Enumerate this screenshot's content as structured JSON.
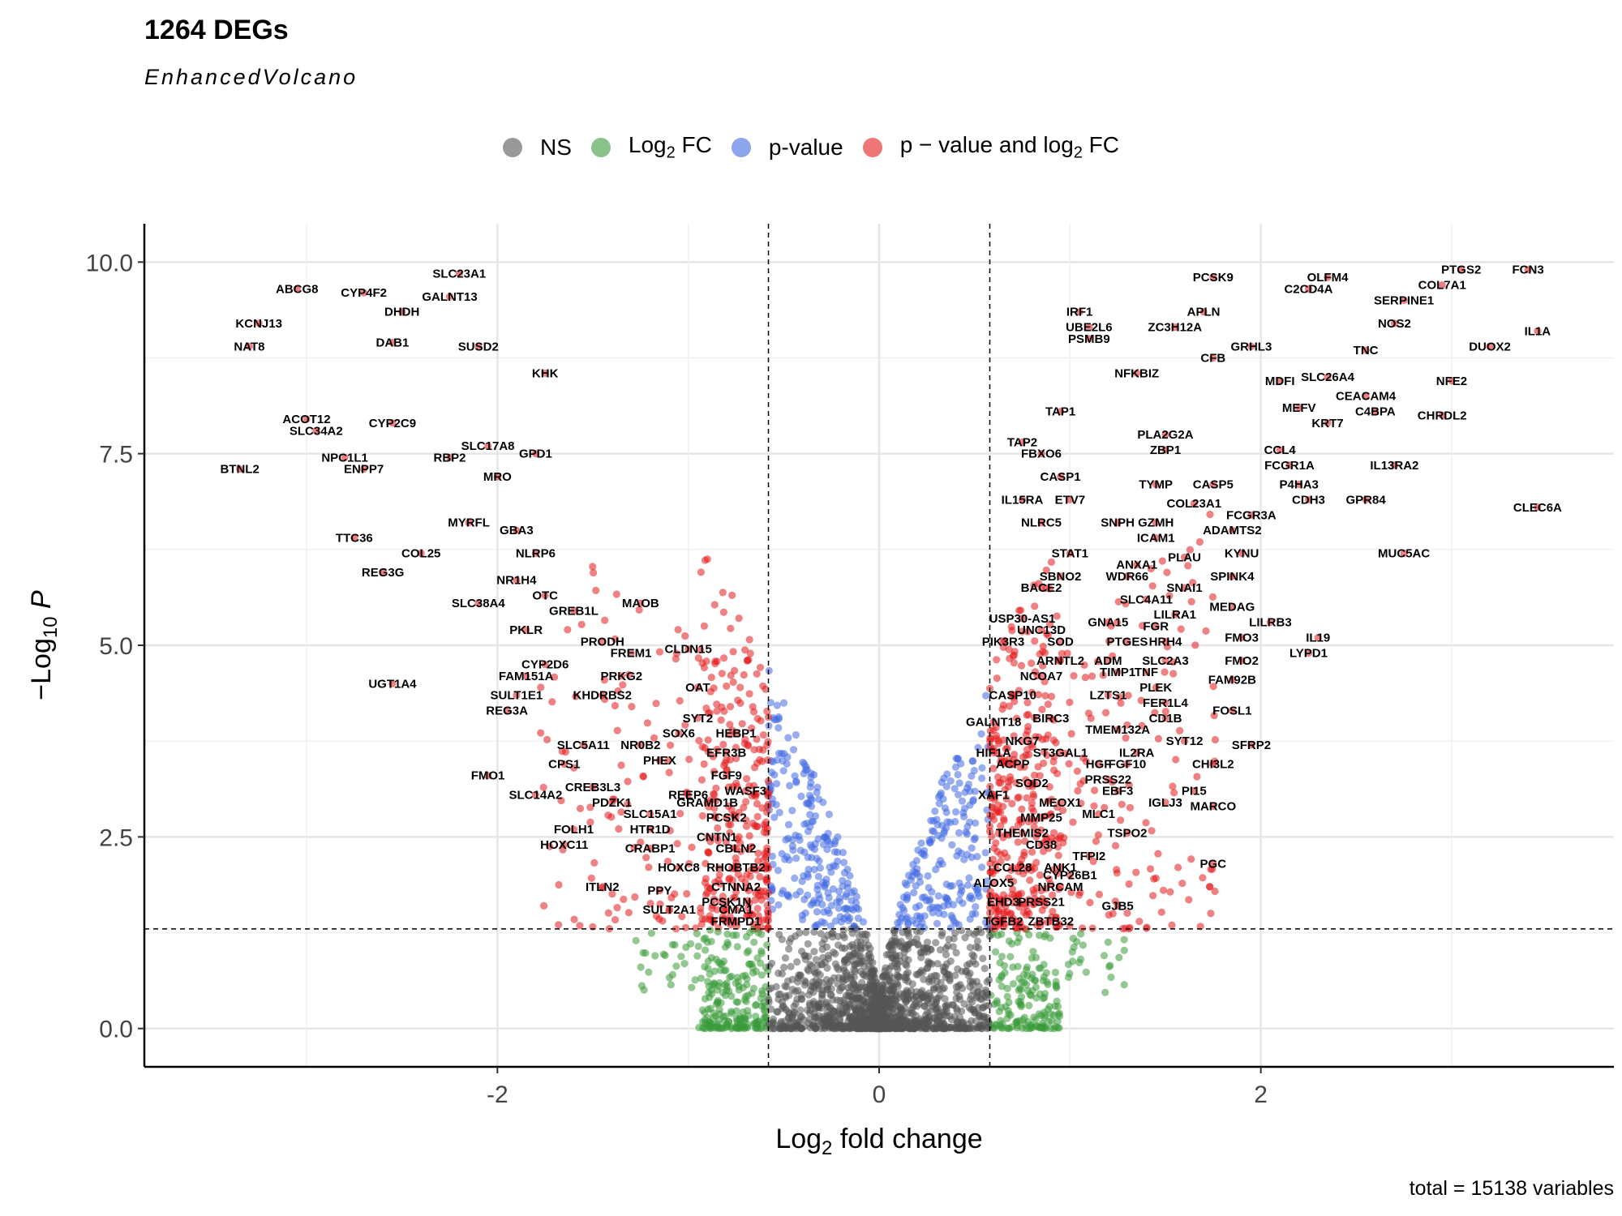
{
  "title": "1264 DEGs",
  "subtitle": "EnhancedVolcano",
  "caption": "total = 15138 variables",
  "colors": {
    "ns": "#555555",
    "log2fc": "#3a9b3a",
    "pvalue": "#4169e1",
    "both": "#e41a1c",
    "grid": "#e6e6e6"
  },
  "legend": [
    {
      "label": "NS",
      "color_key": "ns"
    },
    {
      "label": "Log",
      "sub": "2",
      "suffix": " FC",
      "color_key": "log2fc"
    },
    {
      "label": "p-value",
      "color_key": "pvalue"
    },
    {
      "label": "p − value and log",
      "sub": "2",
      "suffix": " FC",
      "color_key": "both"
    }
  ],
  "chart_data": {
    "type": "scatter",
    "xlabel": "Log2 fold change",
    "ylabel": "-Log10 P",
    "xlim": [
      -3.85,
      3.85
    ],
    "ylim": [
      -0.5,
      10.5
    ],
    "x_ticks": [
      -2,
      0,
      2
    ],
    "x_tick_labels": [
      "-2",
      "0",
      "2"
    ],
    "y_ticks": [
      0,
      2.5,
      5,
      7.5,
      10
    ],
    "y_tick_labels": [
      "0.0",
      "2.5",
      "5.0",
      "7.5",
      "10.0"
    ],
    "fc_cutoff": 0.58,
    "p_cutoff_neglog10": 1.3,
    "grid": true,
    "legend_position": "top",
    "total_variables": 15138,
    "labeled_genes": [
      {
        "gene": "ABCG8",
        "x": -3.05,
        "y": 9.65
      },
      {
        "gene": "CYP4F2",
        "x": -2.7,
        "y": 9.6
      },
      {
        "gene": "SLC23A1",
        "x": -2.2,
        "y": 9.85
      },
      {
        "gene": "GALNT13",
        "x": -2.25,
        "y": 9.55
      },
      {
        "gene": "DHDH",
        "x": -2.5,
        "y": 9.35
      },
      {
        "gene": "KCNJ13",
        "x": -3.25,
        "y": 9.2
      },
      {
        "gene": "NAT8",
        "x": -3.3,
        "y": 8.9
      },
      {
        "gene": "DAB1",
        "x": -2.55,
        "y": 8.95
      },
      {
        "gene": "SUSD2",
        "x": -2.1,
        "y": 8.9
      },
      {
        "gene": "KHK",
        "x": -1.75,
        "y": 8.55
      },
      {
        "gene": "ACOT12",
        "x": -3.0,
        "y": 7.95
      },
      {
        "gene": "SLC34A2",
        "x": -2.95,
        "y": 7.8
      },
      {
        "gene": "CYP2C9",
        "x": -2.55,
        "y": 7.9
      },
      {
        "gene": "NPC1L1",
        "x": -2.8,
        "y": 7.45
      },
      {
        "gene": "ENPP7",
        "x": -2.7,
        "y": 7.3
      },
      {
        "gene": "SLC17A8",
        "x": -2.05,
        "y": 7.6
      },
      {
        "gene": "RBP2",
        "x": -2.25,
        "y": 7.45
      },
      {
        "gene": "GPD1",
        "x": -1.8,
        "y": 7.5
      },
      {
        "gene": "BTNL2",
        "x": -3.35,
        "y": 7.3
      },
      {
        "gene": "MRO",
        "x": -2.0,
        "y": 7.2
      },
      {
        "gene": "MYRFL",
        "x": -2.15,
        "y": 6.6
      },
      {
        "gene": "GBA3",
        "x": -1.9,
        "y": 6.5
      },
      {
        "gene": "TTC36",
        "x": -2.75,
        "y": 6.4
      },
      {
        "gene": "NLRP6",
        "x": -1.8,
        "y": 6.2
      },
      {
        "gene": "COL25",
        "x": -2.4,
        "y": 6.2
      },
      {
        "gene": "REG3G",
        "x": -2.6,
        "y": 5.95
      },
      {
        "gene": "NR1H4",
        "x": -1.9,
        "y": 5.85
      },
      {
        "gene": "OTC",
        "x": -1.75,
        "y": 5.65
      },
      {
        "gene": "SLC38A4",
        "x": -2.1,
        "y": 5.55
      },
      {
        "gene": "GREB1L",
        "x": -1.6,
        "y": 5.45
      },
      {
        "gene": "MAOB",
        "x": -1.25,
        "y": 5.55
      },
      {
        "gene": "PKLR",
        "x": -1.85,
        "y": 5.2
      },
      {
        "gene": "PRODH",
        "x": -1.45,
        "y": 5.05
      },
      {
        "gene": "FREM1",
        "x": -1.3,
        "y": 4.9
      },
      {
        "gene": "CLDN15",
        "x": -1.0,
        "y": 4.95
      },
      {
        "gene": "CYP2D6",
        "x": -1.75,
        "y": 4.75
      },
      {
        "gene": "PRKG2",
        "x": -1.35,
        "y": 4.6
      },
      {
        "gene": "FAM151A",
        "x": -1.85,
        "y": 4.6
      },
      {
        "gene": "OAT",
        "x": -0.95,
        "y": 4.45
      },
      {
        "gene": "UGT1A4",
        "x": -2.55,
        "y": 4.5
      },
      {
        "gene": "SULT1E1",
        "x": -1.9,
        "y": 4.35
      },
      {
        "gene": "KHDRBS2",
        "x": -1.45,
        "y": 4.35
      },
      {
        "gene": "REG3A",
        "x": -1.95,
        "y": 4.15
      },
      {
        "gene": "SYT2",
        "x": -0.95,
        "y": 4.05
      },
      {
        "gene": "SOX6",
        "x": -1.05,
        "y": 3.85
      },
      {
        "gene": "HEBP1",
        "x": -0.75,
        "y": 3.85
      },
      {
        "gene": "SLC5A11",
        "x": -1.55,
        "y": 3.7
      },
      {
        "gene": "NR0B2",
        "x": -1.25,
        "y": 3.7
      },
      {
        "gene": "EFR3B",
        "x": -0.8,
        "y": 3.6
      },
      {
        "gene": "PHEX",
        "x": -1.15,
        "y": 3.5
      },
      {
        "gene": "CPS1",
        "x": -1.65,
        "y": 3.45
      },
      {
        "gene": "FMO1",
        "x": -2.05,
        "y": 3.3
      },
      {
        "gene": "FGF9",
        "x": -0.8,
        "y": 3.3
      },
      {
        "gene": "CREB3L3",
        "x": -1.5,
        "y": 3.15
      },
      {
        "gene": "WASF3",
        "x": -0.7,
        "y": 3.1
      },
      {
        "gene": "SLC14A2",
        "x": -1.8,
        "y": 3.05
      },
      {
        "gene": "REEP6",
        "x": -1.0,
        "y": 3.05
      },
      {
        "gene": "GRAMD1B",
        "x": -0.9,
        "y": 2.95
      },
      {
        "gene": "PDZK1",
        "x": -1.4,
        "y": 2.95
      },
      {
        "gene": "SLC15A1",
        "x": -1.2,
        "y": 2.8
      },
      {
        "gene": "PCSK2",
        "x": -0.8,
        "y": 2.75
      },
      {
        "gene": "FOLH1",
        "x": -1.6,
        "y": 2.6
      },
      {
        "gene": "HTR1D",
        "x": -1.2,
        "y": 2.6
      },
      {
        "gene": "CNTN1",
        "x": -0.85,
        "y": 2.5
      },
      {
        "gene": "HOXC11",
        "x": -1.65,
        "y": 2.4
      },
      {
        "gene": "CRABP1",
        "x": -1.2,
        "y": 2.35
      },
      {
        "gene": "CBLN2",
        "x": -0.75,
        "y": 2.35
      },
      {
        "gene": "HOXC8",
        "x": -1.05,
        "y": 2.1
      },
      {
        "gene": "RHOBTB2",
        "x": -0.75,
        "y": 2.1
      },
      {
        "gene": "ITLN2",
        "x": -1.45,
        "y": 1.85
      },
      {
        "gene": "PPY",
        "x": -1.15,
        "y": 1.8
      },
      {
        "gene": "CTNNA2",
        "x": -0.75,
        "y": 1.85
      },
      {
        "gene": "PCSK1N",
        "x": -0.8,
        "y": 1.65
      },
      {
        "gene": "SULT2A1",
        "x": -1.1,
        "y": 1.55
      },
      {
        "gene": "CMA1",
        "x": -0.75,
        "y": 1.55
      },
      {
        "gene": "FRMPD1",
        "x": -0.75,
        "y": 1.4
      },
      {
        "gene": "PCSK9",
        "x": 1.75,
        "y": 9.8
      },
      {
        "gene": "OLFM4",
        "x": 2.35,
        "y": 9.8
      },
      {
        "gene": "PTGS2",
        "x": 3.05,
        "y": 9.9
      },
      {
        "gene": "FCN3",
        "x": 3.4,
        "y": 9.9
      },
      {
        "gene": "C2CD4A",
        "x": 2.25,
        "y": 9.65
      },
      {
        "gene": "COL7A1",
        "x": 2.95,
        "y": 9.7
      },
      {
        "gene": "SERPINE1",
        "x": 2.75,
        "y": 9.5
      },
      {
        "gene": "IRF1",
        "x": 1.05,
        "y": 9.35
      },
      {
        "gene": "APLN",
        "x": 1.7,
        "y": 9.35
      },
      {
        "gene": "UBE2L6",
        "x": 1.1,
        "y": 9.15
      },
      {
        "gene": "ZC3H12A",
        "x": 1.55,
        "y": 9.15
      },
      {
        "gene": "NOS2",
        "x": 2.7,
        "y": 9.2
      },
      {
        "gene": "PSMB9",
        "x": 1.1,
        "y": 9.0
      },
      {
        "gene": "IL1A",
        "x": 3.45,
        "y": 9.1
      },
      {
        "gene": "GRHL3",
        "x": 1.95,
        "y": 8.9
      },
      {
        "gene": "TNC",
        "x": 2.55,
        "y": 8.85
      },
      {
        "gene": "DUOX2",
        "x": 3.2,
        "y": 8.9
      },
      {
        "gene": "CFB",
        "x": 1.75,
        "y": 8.75
      },
      {
        "gene": "NFKBIZ",
        "x": 1.35,
        "y": 8.55
      },
      {
        "gene": "MDFI",
        "x": 2.1,
        "y": 8.45
      },
      {
        "gene": "SLC26A4",
        "x": 2.35,
        "y": 8.5
      },
      {
        "gene": "NFE2",
        "x": 3.0,
        "y": 8.45
      },
      {
        "gene": "CEACAM4",
        "x": 2.55,
        "y": 8.25
      },
      {
        "gene": "MEFV",
        "x": 2.2,
        "y": 8.1
      },
      {
        "gene": "C4BPA",
        "x": 2.6,
        "y": 8.05
      },
      {
        "gene": "TAP1",
        "x": 0.95,
        "y": 8.05
      },
      {
        "gene": "CHRDL2",
        "x": 2.95,
        "y": 8.0
      },
      {
        "gene": "KRT7",
        "x": 2.35,
        "y": 7.9
      },
      {
        "gene": "PLA2G2A",
        "x": 1.5,
        "y": 7.75
      },
      {
        "gene": "TAP2",
        "x": 0.75,
        "y": 7.65
      },
      {
        "gene": "ZBP1",
        "x": 1.5,
        "y": 7.55
      },
      {
        "gene": "CCL4",
        "x": 2.1,
        "y": 7.55
      },
      {
        "gene": "FBXO6",
        "x": 0.85,
        "y": 7.5
      },
      {
        "gene": "FCGR1A",
        "x": 2.15,
        "y": 7.35
      },
      {
        "gene": "IL13RA2",
        "x": 2.7,
        "y": 7.35
      },
      {
        "gene": "CASP1",
        "x": 0.95,
        "y": 7.2
      },
      {
        "gene": "TYMP",
        "x": 1.45,
        "y": 7.1
      },
      {
        "gene": "CASP5",
        "x": 1.75,
        "y": 7.1
      },
      {
        "gene": "P4HA3",
        "x": 2.2,
        "y": 7.1
      },
      {
        "gene": "IL15RA",
        "x": 0.75,
        "y": 6.9
      },
      {
        "gene": "ETV7",
        "x": 1.0,
        "y": 6.9
      },
      {
        "gene": "COL23A1",
        "x": 1.65,
        "y": 6.85
      },
      {
        "gene": "CDH3",
        "x": 2.25,
        "y": 6.9
      },
      {
        "gene": "GPR84",
        "x": 2.55,
        "y": 6.9
      },
      {
        "gene": "CLEC6A",
        "x": 3.45,
        "y": 6.8
      },
      {
        "gene": "FCGR3A",
        "x": 1.95,
        "y": 6.7
      },
      {
        "gene": "NLRC5",
        "x": 0.85,
        "y": 6.6
      },
      {
        "gene": "SNPH",
        "x": 1.25,
        "y": 6.6
      },
      {
        "gene": "GZMH",
        "x": 1.45,
        "y": 6.6
      },
      {
        "gene": "ADAMTS2",
        "x": 1.85,
        "y": 6.5
      },
      {
        "gene": "ICAM1",
        "x": 1.45,
        "y": 6.4
      },
      {
        "gene": "STAT1",
        "x": 1.0,
        "y": 6.2
      },
      {
        "gene": "KYNU",
        "x": 1.9,
        "y": 6.2
      },
      {
        "gene": "PLAU",
        "x": 1.6,
        "y": 6.15
      },
      {
        "gene": "MUC5AC",
        "x": 2.75,
        "y": 6.2
      },
      {
        "gene": "ANXA1",
        "x": 1.35,
        "y": 6.05
      },
      {
        "gene": "SBNO2",
        "x": 0.95,
        "y": 5.9
      },
      {
        "gene": "WDR66",
        "x": 1.3,
        "y": 5.9
      },
      {
        "gene": "SPINK4",
        "x": 1.85,
        "y": 5.9
      },
      {
        "gene": "BACE2",
        "x": 0.85,
        "y": 5.75
      },
      {
        "gene": "SNAI1",
        "x": 1.6,
        "y": 5.75
      },
      {
        "gene": "SLC4A11",
        "x": 1.4,
        "y": 5.6
      },
      {
        "gene": "MEDAG",
        "x": 1.85,
        "y": 5.5
      },
      {
        "gene": "LILRA1",
        "x": 1.55,
        "y": 5.4
      },
      {
        "gene": "USP30-AS1",
        "x": 0.75,
        "y": 5.35
      },
      {
        "gene": "GNA15",
        "x": 1.2,
        "y": 5.3
      },
      {
        "gene": "FGR",
        "x": 1.45,
        "y": 5.25
      },
      {
        "gene": "LILRB3",
        "x": 2.05,
        "y": 5.3
      },
      {
        "gene": "UNC13D",
        "x": 0.85,
        "y": 5.2
      },
      {
        "gene": "FMO3",
        "x": 1.9,
        "y": 5.1
      },
      {
        "gene": "IL19",
        "x": 2.3,
        "y": 5.1
      },
      {
        "gene": "PIK3R3",
        "x": 0.65,
        "y": 5.05
      },
      {
        "gene": "SOD",
        "x": 0.95,
        "y": 5.05
      },
      {
        "gene": "PTGES",
        "x": 1.3,
        "y": 5.05
      },
      {
        "gene": "HRH4",
        "x": 1.5,
        "y": 5.05
      },
      {
        "gene": "LYPD1",
        "x": 2.25,
        "y": 4.9
      },
      {
        "gene": "ARNTL2",
        "x": 0.95,
        "y": 4.8
      },
      {
        "gene": "ADM",
        "x": 1.2,
        "y": 4.8
      },
      {
        "gene": "SLC2A3",
        "x": 1.5,
        "y": 4.8
      },
      {
        "gene": "FMO2",
        "x": 1.9,
        "y": 4.8
      },
      {
        "gene": "TIMP1",
        "x": 1.25,
        "y": 4.65
      },
      {
        "gene": "TNF",
        "x": 1.4,
        "y": 4.65
      },
      {
        "gene": "NCOA7",
        "x": 0.85,
        "y": 4.6
      },
      {
        "gene": "FAM92B",
        "x": 1.85,
        "y": 4.55
      },
      {
        "gene": "PLEK",
        "x": 1.45,
        "y": 4.45
      },
      {
        "gene": "CASP10",
        "x": 0.7,
        "y": 4.35
      },
      {
        "gene": "LZTS1",
        "x": 1.2,
        "y": 4.35
      },
      {
        "gene": "FER1L4",
        "x": 1.5,
        "y": 4.25
      },
      {
        "gene": "FOSL1",
        "x": 1.85,
        "y": 4.15
      },
      {
        "gene": "BIRC3",
        "x": 0.9,
        "y": 4.05
      },
      {
        "gene": "GALNT18",
        "x": 0.6,
        "y": 4.0
      },
      {
        "gene": "CD1B",
        "x": 1.5,
        "y": 4.05
      },
      {
        "gene": "TMEM132A",
        "x": 1.25,
        "y": 3.9
      },
      {
        "gene": "NKG7",
        "x": 0.75,
        "y": 3.75
      },
      {
        "gene": "SYT12",
        "x": 1.6,
        "y": 3.75
      },
      {
        "gene": "SFRP2",
        "x": 1.95,
        "y": 3.7
      },
      {
        "gene": "HIF1A",
        "x": 0.6,
        "y": 3.6
      },
      {
        "gene": "ST3GAL1",
        "x": 0.95,
        "y": 3.6
      },
      {
        "gene": "IL2RA",
        "x": 1.35,
        "y": 3.6
      },
      {
        "gene": "CHI3L2",
        "x": 1.75,
        "y": 3.45
      },
      {
        "gene": "ACPP",
        "x": 0.7,
        "y": 3.45
      },
      {
        "gene": "HGF",
        "x": 1.15,
        "y": 3.45
      },
      {
        "gene": "FGF10",
        "x": 1.3,
        "y": 3.45
      },
      {
        "gene": "PRSS22",
        "x": 1.2,
        "y": 3.25
      },
      {
        "gene": "SOD2",
        "x": 0.8,
        "y": 3.2
      },
      {
        "gene": "EBF3",
        "x": 1.25,
        "y": 3.1
      },
      {
        "gene": "XAF1",
        "x": 0.6,
        "y": 3.05
      },
      {
        "gene": "PI15",
        "x": 1.65,
        "y": 3.1
      },
      {
        "gene": "MEOX1",
        "x": 0.95,
        "y": 2.95
      },
      {
        "gene": "IGLJ3",
        "x": 1.5,
        "y": 2.95
      },
      {
        "gene": "MARCO",
        "x": 1.75,
        "y": 2.9
      },
      {
        "gene": "MLC1",
        "x": 1.15,
        "y": 2.8
      },
      {
        "gene": "MMP25",
        "x": 0.85,
        "y": 2.75
      },
      {
        "gene": "THEMIS2",
        "x": 0.75,
        "y": 2.55
      },
      {
        "gene": "TSPO2",
        "x": 1.3,
        "y": 2.55
      },
      {
        "gene": "CD38",
        "x": 0.85,
        "y": 2.4
      },
      {
        "gene": "TFPI2",
        "x": 1.1,
        "y": 2.25
      },
      {
        "gene": "PGC",
        "x": 1.75,
        "y": 2.15
      },
      {
        "gene": "CCL28",
        "x": 0.7,
        "y": 2.1
      },
      {
        "gene": "ANK1",
        "x": 0.95,
        "y": 2.1
      },
      {
        "gene": "CYP26B1",
        "x": 1.0,
        "y": 2.0
      },
      {
        "gene": "ALOX5",
        "x": 0.6,
        "y": 1.9
      },
      {
        "gene": "NRCAM",
        "x": 0.95,
        "y": 1.85
      },
      {
        "gene": "EHD3",
        "x": 0.65,
        "y": 1.65
      },
      {
        "gene": "PRSS21",
        "x": 0.85,
        "y": 1.65
      },
      {
        "gene": "GJB5",
        "x": 1.25,
        "y": 1.6
      },
      {
        "gene": "TGFB2",
        "x": 0.65,
        "y": 1.4
      },
      {
        "gene": "ZBTB32",
        "x": 0.9,
        "y": 1.4
      }
    ]
  }
}
